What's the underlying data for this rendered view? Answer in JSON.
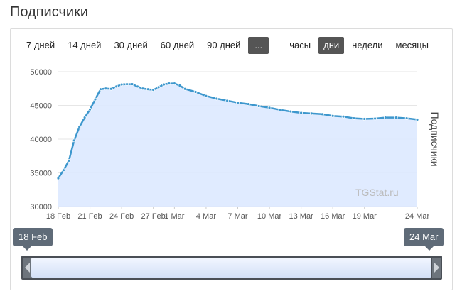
{
  "page": {
    "title": "Подписчики"
  },
  "toolbar": {
    "periods": [
      "7 дней",
      "14 дней",
      "30 дней",
      "60 дней",
      "90 дней"
    ],
    "more": "...",
    "units": [
      "часы",
      "дни",
      "недели",
      "месяцы"
    ],
    "active_unit": "дни"
  },
  "navigator": {
    "start_label": "18 Feb",
    "end_label": "24 Mar"
  },
  "colors": {
    "line": "#3d97cd",
    "area": "#dde9ff",
    "accent": "#555555"
  },
  "chart_data": {
    "type": "area",
    "xlabel": "",
    "ylabel": "Подписчики",
    "credit": "TGStat.ru",
    "x_ticks": [
      "18 Feb",
      "21 Feb",
      "24 Feb",
      "27 Feb",
      "1 Mar",
      "4 Mar",
      "7 Mar",
      "10 Mar",
      "13 Mar",
      "16 Mar",
      "19 Mar",
      "24 Mar"
    ],
    "y_ticks": [
      "30000",
      "35000",
      "40000",
      "45000",
      "50000"
    ],
    "ylim": [
      30000,
      50000
    ],
    "grid": "horizontal",
    "series": [
      {
        "x": [
          "18 Feb",
          "18 Feb",
          "19 Feb",
          "19 Feb",
          "20 Feb",
          "20 Feb",
          "21 Feb",
          "21 Feb",
          "22 Feb",
          "22 Feb",
          "23 Feb",
          "23 Feb",
          "24 Feb",
          "24 Feb",
          "25 Feb",
          "25 Feb",
          "26 Feb",
          "26 Feb",
          "27 Feb",
          "27 Feb",
          "28 Feb",
          "28 Feb",
          "1 Mar",
          "1 Mar",
          "2 Mar",
          "3 Mar",
          "4 Mar",
          "5 Mar",
          "6 Mar",
          "7 Mar",
          "8 Mar",
          "9 Mar",
          "10 Mar",
          "11 Mar",
          "12 Mar",
          "13 Mar",
          "14 Mar",
          "15 Mar",
          "16 Mar",
          "17 Mar",
          "18 Mar",
          "19 Mar",
          "20 Mar",
          "21 Mar",
          "22 Mar",
          "23 Mar",
          "24 Mar"
        ],
        "values": [
          34200,
          35400,
          36800,
          39800,
          41800,
          43200,
          44400,
          45900,
          47400,
          47500,
          47450,
          47800,
          48100,
          48150,
          48150,
          47800,
          47500,
          47400,
          47300,
          47700,
          48100,
          48250,
          48250,
          47950,
          47450,
          47000,
          46400,
          46000,
          45700,
          45400,
          45200,
          44900,
          44650,
          44350,
          44100,
          43900,
          43800,
          43700,
          43450,
          43350,
          43100,
          43000,
          43050,
          43200,
          43200,
          43100,
          42900
        ]
      }
    ]
  }
}
